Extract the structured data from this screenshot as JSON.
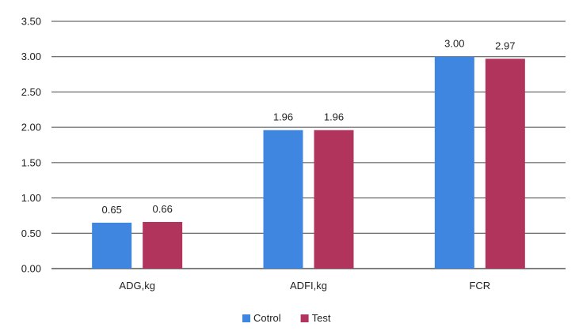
{
  "chart_data": {
    "type": "bar",
    "categories": [
      "ADG,kg",
      "ADFI,kg",
      "FCR"
    ],
    "series": [
      {
        "name": "Cotrol",
        "values": [
          0.65,
          1.96,
          3.0
        ],
        "labels": [
          "0.65",
          "1.96",
          "3.00"
        ],
        "color": "#3f86e0"
      },
      {
        "name": "Test",
        "values": [
          0.66,
          1.96,
          2.97
        ],
        "labels": [
          "0.66",
          "1.96",
          "2.97"
        ],
        "color": "#b0345c"
      }
    ],
    "title": "",
    "xlabel": "",
    "ylabel": "",
    "ylim": [
      0,
      3.5
    ],
    "yticks": [
      "0.00",
      "0.50",
      "1.00",
      "1.50",
      "2.00",
      "2.50",
      "3.00",
      "3.50"
    ],
    "grid": true,
    "legend_position": "bottom-center"
  }
}
